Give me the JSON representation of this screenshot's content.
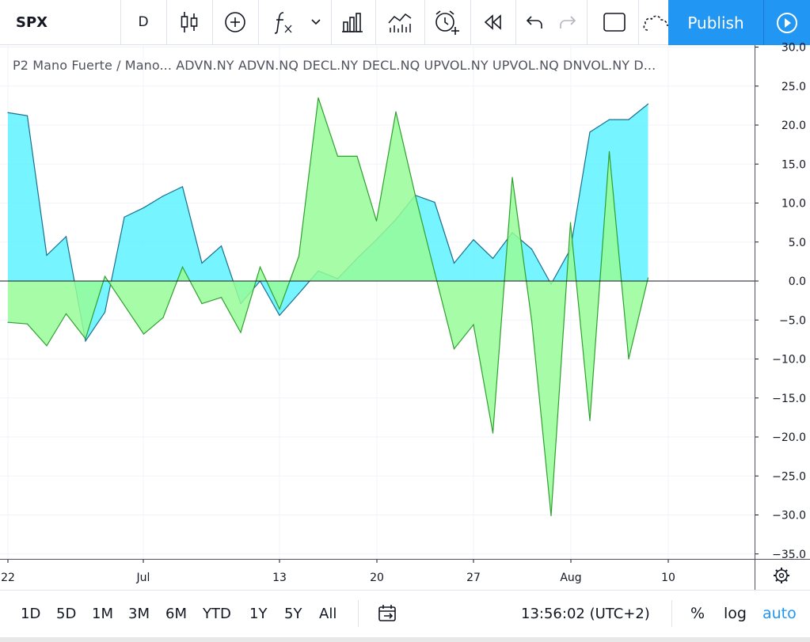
{
  "toolbar": {
    "symbol": "SPX",
    "interval": "D",
    "icons": [
      "candles-icon",
      "add-compare-icon",
      "indicators-icon",
      "chevron-down-icon",
      "financials-icon",
      "compare-volume-icon",
      "alert-icon",
      "replay-icon",
      "undo-icon",
      "redo-icon",
      "fullscreen-icon",
      "cloud-icon"
    ],
    "publish_label": "Publish"
  },
  "legend": {
    "text": "P2 Mano Fuerte / Mano...  ADVN.NY ADVN.NQ DECL.NY DECL.NQ UPVOL.NY UPVOL.NQ DNVOL.NY D..."
  },
  "chart_data": {
    "type": "area",
    "x_labels": [
      "22",
      "Jul",
      "13",
      "20",
      "27",
      "Aug",
      "10"
    ],
    "y_ticks": [
      "30.0",
      "25.0",
      "20.0",
      "15.0",
      "10.0",
      "5.0",
      "0.0",
      "-5.0",
      "-10.0",
      "-15.0",
      "-20.0",
      "-25.0",
      "-30.0",
      "-35.0"
    ],
    "ylim": [
      -35,
      30
    ],
    "baseline": 0,
    "series": [
      {
        "color": "#5ef2ff",
        "line_color": "#1b6f8e",
        "values": [
          21.6,
          21.2,
          3.3,
          5.7,
          -7.7,
          -4.0,
          8.2,
          9.4,
          10.9,
          12.1,
          2.3,
          4.5,
          -2.9,
          0.0,
          -4.4,
          -1.6,
          1.3,
          0.3,
          2.9,
          5.3,
          7.9,
          11.0,
          10.1,
          2.3,
          5.3,
          2.9,
          6.2,
          4.1,
          -0.4,
          4.1,
          19.1,
          20.7,
          20.7,
          22.7
        ]
      },
      {
        "color": "#98fb98",
        "line_color": "#2ea02e",
        "values": [
          -5.3,
          -5.5,
          -8.3,
          -4.2,
          -7.4,
          0.6,
          -3.1,
          -6.8,
          -4.7,
          1.8,
          -2.9,
          -2.1,
          -6.6,
          1.8,
          -3.6,
          3.2,
          23.5,
          16.0,
          16.0,
          7.7,
          21.7,
          11.0,
          1.1,
          -8.7,
          -5.6,
          -19.5,
          13.3,
          -5.1,
          -30.1,
          7.5,
          -17.9,
          16.6,
          -10.0,
          0.4
        ]
      }
    ]
  },
  "axis_controls": {
    "settings_icon": "gear-icon"
  },
  "bottom": {
    "ranges": [
      "1D",
      "5D",
      "1M",
      "3M",
      "6M",
      "YTD",
      "1Y",
      "5Y",
      "All"
    ],
    "goto_icon": "calendar-goto-icon",
    "time": "13:56:02 (UTC+2)",
    "percent": "%",
    "log": "log",
    "auto": "auto",
    "auto_color": "#2196f3"
  }
}
